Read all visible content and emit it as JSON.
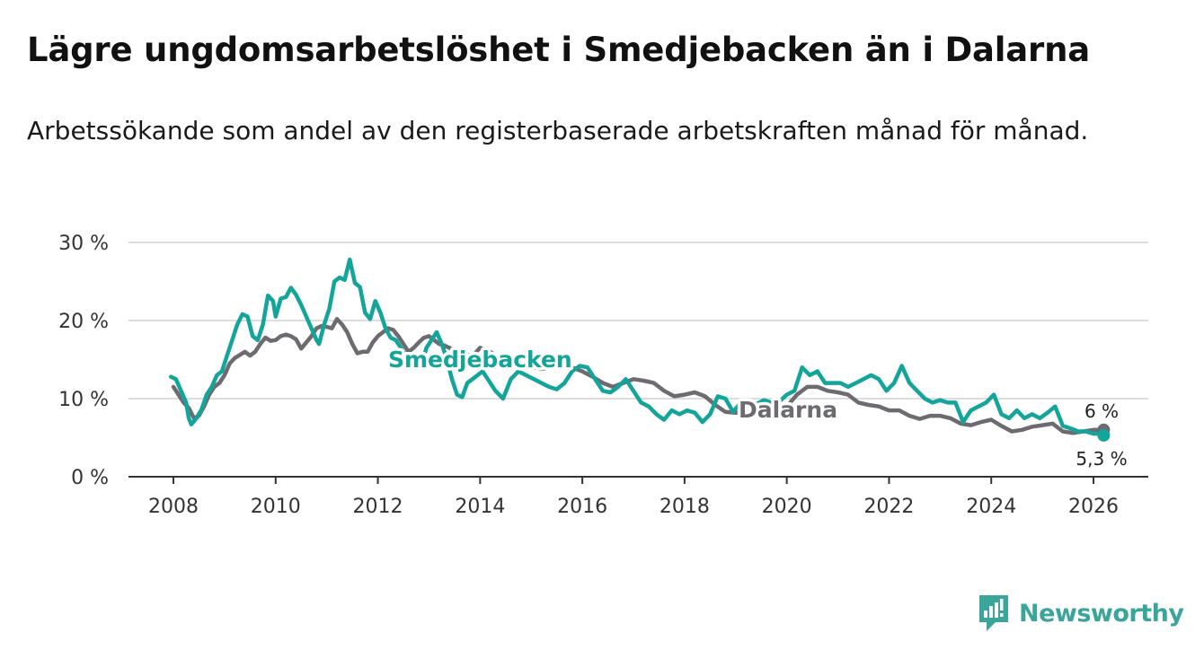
{
  "title": "Lägre ungdomsarbetslöshet i Smedjebacken än i Dalarna",
  "subtitle": "Arbetssökande som andel av den registerbaserade arbetskraften månad för månad.",
  "brand": {
    "name": "Newsworthy",
    "icon": "bar-chart-logo-icon"
  },
  "colors": {
    "smedjebacken": "#13a59a",
    "dalarna": "#6e6b70",
    "grid": "#dddddd",
    "axis": "#333333"
  },
  "chart_data": {
    "type": "line",
    "x_unit": "year",
    "y_unit": "%",
    "ylim": [
      0,
      30
    ],
    "xlim": [
      2007.5,
      2027.1
    ],
    "y_ticks": [
      {
        "value": 0,
        "label": "0 %"
      },
      {
        "value": 10,
        "label": "10 %"
      },
      {
        "value": 20,
        "label": "20 %"
      },
      {
        "value": 30,
        "label": "30 %"
      }
    ],
    "x_ticks": [
      {
        "value": 2008,
        "label": "2008"
      },
      {
        "value": 2010,
        "label": "2010"
      },
      {
        "value": 2012,
        "label": "2012"
      },
      {
        "value": 2014,
        "label": "2014"
      },
      {
        "value": 2016,
        "label": "2016"
      },
      {
        "value": 2018,
        "label": "2018"
      },
      {
        "value": 2020,
        "label": "2020"
      },
      {
        "value": 2022,
        "label": "2022"
      },
      {
        "value": 2024,
        "label": "2024"
      },
      {
        "value": 2026,
        "label": "2026"
      }
    ],
    "series": [
      {
        "name": "Dalarna",
        "label": "Dalarna",
        "end_label": "6 %",
        "color": "#6e6b70",
        "points": [
          [
            2008.0,
            11.5
          ],
          [
            2008.1,
            10.5
          ],
          [
            2008.2,
            9.5
          ],
          [
            2008.3,
            8.8
          ],
          [
            2008.4,
            7.5
          ],
          [
            2008.5,
            7.8
          ],
          [
            2008.6,
            9.0
          ],
          [
            2008.7,
            10.5
          ],
          [
            2008.8,
            11.5
          ],
          [
            2008.9,
            12.0
          ],
          [
            2009.0,
            13.0
          ],
          [
            2009.1,
            14.5
          ],
          [
            2009.2,
            15.2
          ],
          [
            2009.3,
            15.6
          ],
          [
            2009.4,
            16.0
          ],
          [
            2009.5,
            15.5
          ],
          [
            2009.6,
            16.0
          ],
          [
            2009.7,
            17.0
          ],
          [
            2009.8,
            17.8
          ],
          [
            2009.9,
            17.4
          ],
          [
            2010.0,
            17.5
          ],
          [
            2010.1,
            18.0
          ],
          [
            2010.2,
            18.2
          ],
          [
            2010.3,
            18.0
          ],
          [
            2010.4,
            17.6
          ],
          [
            2010.5,
            16.4
          ],
          [
            2010.6,
            17.2
          ],
          [
            2010.7,
            18.0
          ],
          [
            2010.8,
            19.0
          ],
          [
            2010.9,
            19.3
          ],
          [
            2011.0,
            19.2
          ],
          [
            2011.1,
            19.0
          ],
          [
            2011.2,
            20.2
          ],
          [
            2011.3,
            19.5
          ],
          [
            2011.4,
            18.5
          ],
          [
            2011.5,
            17.0
          ],
          [
            2011.6,
            15.8
          ],
          [
            2011.7,
            16.0
          ],
          [
            2011.8,
            16.0
          ],
          [
            2011.9,
            17.2
          ],
          [
            2012.0,
            18.0
          ],
          [
            2012.1,
            18.5
          ],
          [
            2012.2,
            19.0
          ],
          [
            2012.3,
            18.8
          ],
          [
            2012.4,
            18.0
          ],
          [
            2012.5,
            17.0
          ],
          [
            2012.6,
            16.0
          ],
          [
            2012.7,
            16.5
          ],
          [
            2012.8,
            17.2
          ],
          [
            2012.9,
            17.8
          ],
          [
            2013.0,
            18.0
          ],
          [
            2013.1,
            17.5
          ],
          [
            2013.2,
            17.0
          ],
          [
            2013.3,
            16.8
          ],
          [
            2013.4,
            16.5
          ],
          [
            2013.5,
            16.2
          ],
          [
            2013.6,
            16.0
          ],
          [
            2013.7,
            15.8
          ],
          [
            2013.8,
            15.5
          ],
          [
            2013.9,
            15.8
          ],
          [
            2014.0,
            16.5
          ],
          [
            2014.2,
            16.0
          ],
          [
            2014.4,
            15.0
          ],
          [
            2014.6,
            14.5
          ],
          [
            2014.8,
            14.3
          ],
          [
            2015.0,
            14.0
          ],
          [
            2015.2,
            13.8
          ],
          [
            2015.4,
            14.0
          ],
          [
            2015.6,
            14.2
          ],
          [
            2015.8,
            14.0
          ],
          [
            2016.0,
            13.5
          ],
          [
            2016.2,
            12.8
          ],
          [
            2016.4,
            12.0
          ],
          [
            2016.6,
            11.5
          ],
          [
            2016.8,
            12.0
          ],
          [
            2017.0,
            12.5
          ],
          [
            2017.2,
            12.3
          ],
          [
            2017.4,
            12.0
          ],
          [
            2017.6,
            11.0
          ],
          [
            2017.8,
            10.3
          ],
          [
            2018.0,
            10.5
          ],
          [
            2018.2,
            10.8
          ],
          [
            2018.4,
            10.3
          ],
          [
            2018.6,
            9.2
          ],
          [
            2018.8,
            8.3
          ],
          [
            2019.0,
            8.2
          ],
          [
            2019.2,
            8.3
          ],
          [
            2019.4,
            8.0
          ],
          [
            2019.6,
            7.5
          ],
          [
            2019.8,
            8.5
          ],
          [
            2020.0,
            9.0
          ],
          [
            2020.2,
            10.5
          ],
          [
            2020.4,
            11.5
          ],
          [
            2020.6,
            11.5
          ],
          [
            2020.8,
            11.0
          ],
          [
            2021.0,
            10.8
          ],
          [
            2021.2,
            10.5
          ],
          [
            2021.4,
            9.5
          ],
          [
            2021.6,
            9.2
          ],
          [
            2021.8,
            9.0
          ],
          [
            2022.0,
            8.5
          ],
          [
            2022.2,
            8.5
          ],
          [
            2022.4,
            7.8
          ],
          [
            2022.6,
            7.4
          ],
          [
            2022.8,
            7.8
          ],
          [
            2023.0,
            7.8
          ],
          [
            2023.2,
            7.5
          ],
          [
            2023.4,
            6.8
          ],
          [
            2023.6,
            6.6
          ],
          [
            2023.8,
            7.0
          ],
          [
            2024.0,
            7.3
          ],
          [
            2024.2,
            6.5
          ],
          [
            2024.4,
            5.8
          ],
          [
            2024.6,
            6.0
          ],
          [
            2024.8,
            6.4
          ],
          [
            2025.0,
            6.6
          ],
          [
            2025.2,
            6.8
          ],
          [
            2025.4,
            5.8
          ],
          [
            2025.6,
            5.6
          ],
          [
            2025.8,
            5.8
          ],
          [
            2026.0,
            6.0
          ],
          [
            2026.2,
            6.0
          ]
        ]
      },
      {
        "name": "Smedjebacken",
        "label": "Smedjebacken",
        "end_label": "5,3 %",
        "color": "#13a59a",
        "points": [
          [
            2007.95,
            12.8
          ],
          [
            2008.05,
            12.5
          ],
          [
            2008.15,
            11.0
          ],
          [
            2008.25,
            9.5
          ],
          [
            2008.3,
            7.5
          ],
          [
            2008.35,
            6.7
          ],
          [
            2008.45,
            7.5
          ],
          [
            2008.55,
            8.6
          ],
          [
            2008.65,
            10.5
          ],
          [
            2008.75,
            11.5
          ],
          [
            2008.85,
            13.0
          ],
          [
            2008.95,
            13.5
          ],
          [
            2009.05,
            15.5
          ],
          [
            2009.15,
            17.5
          ],
          [
            2009.25,
            19.5
          ],
          [
            2009.35,
            20.8
          ],
          [
            2009.45,
            20.5
          ],
          [
            2009.55,
            18.0
          ],
          [
            2009.65,
            17.5
          ],
          [
            2009.75,
            19.5
          ],
          [
            2009.85,
            23.2
          ],
          [
            2009.95,
            22.5
          ],
          [
            2010.0,
            20.5
          ],
          [
            2010.1,
            22.8
          ],
          [
            2010.2,
            23.0
          ],
          [
            2010.3,
            24.2
          ],
          [
            2010.4,
            23.3
          ],
          [
            2010.5,
            22.0
          ],
          [
            2010.6,
            20.5
          ],
          [
            2010.7,
            19.0
          ],
          [
            2010.8,
            17.5
          ],
          [
            2010.85,
            17.0
          ],
          [
            2010.95,
            19.5
          ],
          [
            2011.05,
            21.5
          ],
          [
            2011.15,
            25.0
          ],
          [
            2011.25,
            25.5
          ],
          [
            2011.35,
            25.2
          ],
          [
            2011.45,
            27.8
          ],
          [
            2011.55,
            24.8
          ],
          [
            2011.65,
            24.3
          ],
          [
            2011.75,
            21.0
          ],
          [
            2011.85,
            20.2
          ],
          [
            2011.95,
            22.5
          ],
          [
            2012.05,
            21.0
          ],
          [
            2012.15,
            19.0
          ],
          [
            2012.25,
            17.8
          ],
          [
            2012.35,
            17.5
          ],
          [
            2012.45,
            16.5
          ],
          [
            2012.55,
            15.5
          ],
          [
            2012.65,
            14.5
          ],
          [
            2012.75,
            14.0
          ],
          [
            2012.85,
            14.2
          ],
          [
            2012.95,
            16.5
          ],
          [
            2013.05,
            17.5
          ],
          [
            2013.15,
            18.5
          ],
          [
            2013.25,
            17.0
          ],
          [
            2013.35,
            15.0
          ],
          [
            2013.45,
            12.5
          ],
          [
            2013.55,
            10.5
          ],
          [
            2013.65,
            10.2
          ],
          [
            2013.75,
            12.0
          ],
          [
            2013.85,
            12.5
          ],
          [
            2013.95,
            13.0
          ],
          [
            2014.05,
            13.5
          ],
          [
            2014.15,
            12.5
          ],
          [
            2014.3,
            11.0
          ],
          [
            2014.45,
            10.0
          ],
          [
            2014.6,
            12.5
          ],
          [
            2014.75,
            13.5
          ],
          [
            2014.9,
            13.0
          ],
          [
            2015.05,
            12.5
          ],
          [
            2015.2,
            12.0
          ],
          [
            2015.35,
            11.5
          ],
          [
            2015.5,
            11.2
          ],
          [
            2015.65,
            12.0
          ],
          [
            2015.8,
            13.5
          ],
          [
            2015.95,
            14.2
          ],
          [
            2016.1,
            14.0
          ],
          [
            2016.25,
            12.5
          ],
          [
            2016.4,
            11.0
          ],
          [
            2016.55,
            10.8
          ],
          [
            2016.7,
            11.5
          ],
          [
            2016.85,
            12.5
          ],
          [
            2017.0,
            11.0
          ],
          [
            2017.15,
            9.5
          ],
          [
            2017.3,
            9.0
          ],
          [
            2017.45,
            8.0
          ],
          [
            2017.6,
            7.3
          ],
          [
            2017.75,
            8.5
          ],
          [
            2017.9,
            8.0
          ],
          [
            2018.05,
            8.5
          ],
          [
            2018.2,
            8.2
          ],
          [
            2018.35,
            7.0
          ],
          [
            2018.5,
            8.0
          ],
          [
            2018.65,
            10.3
          ],
          [
            2018.8,
            10.0
          ],
          [
            2018.95,
            8.3
          ],
          [
            2019.1,
            9.5
          ],
          [
            2019.25,
            9.5
          ],
          [
            2019.4,
            9.3
          ],
          [
            2019.55,
            9.8
          ],
          [
            2019.7,
            9.5
          ],
          [
            2019.85,
            9.6
          ],
          [
            2020.0,
            10.5
          ],
          [
            2020.15,
            11.0
          ],
          [
            2020.3,
            14.0
          ],
          [
            2020.45,
            13.0
          ],
          [
            2020.6,
            13.5
          ],
          [
            2020.75,
            12.0
          ],
          [
            2020.9,
            12.0
          ],
          [
            2021.05,
            12.0
          ],
          [
            2021.2,
            11.5
          ],
          [
            2021.35,
            12.0
          ],
          [
            2021.5,
            12.5
          ],
          [
            2021.65,
            13.0
          ],
          [
            2021.8,
            12.5
          ],
          [
            2021.95,
            11.0
          ],
          [
            2022.1,
            12.0
          ],
          [
            2022.25,
            14.2
          ],
          [
            2022.4,
            12.0
          ],
          [
            2022.55,
            11.0
          ],
          [
            2022.7,
            10.0
          ],
          [
            2022.85,
            9.5
          ],
          [
            2023.0,
            9.8
          ],
          [
            2023.15,
            9.5
          ],
          [
            2023.3,
            9.5
          ],
          [
            2023.45,
            7.0
          ],
          [
            2023.6,
            8.5
          ],
          [
            2023.75,
            9.0
          ],
          [
            2023.9,
            9.5
          ],
          [
            2024.05,
            10.5
          ],
          [
            2024.2,
            8.0
          ],
          [
            2024.35,
            7.5
          ],
          [
            2024.5,
            8.5
          ],
          [
            2024.65,
            7.5
          ],
          [
            2024.8,
            8.0
          ],
          [
            2024.95,
            7.5
          ],
          [
            2025.1,
            8.2
          ],
          [
            2025.25,
            9.0
          ],
          [
            2025.4,
            6.5
          ],
          [
            2025.55,
            6.2
          ],
          [
            2025.7,
            5.8
          ],
          [
            2025.85,
            5.8
          ],
          [
            2026.0,
            5.5
          ],
          [
            2026.1,
            5.5
          ],
          [
            2026.2,
            5.3
          ]
        ]
      }
    ]
  }
}
